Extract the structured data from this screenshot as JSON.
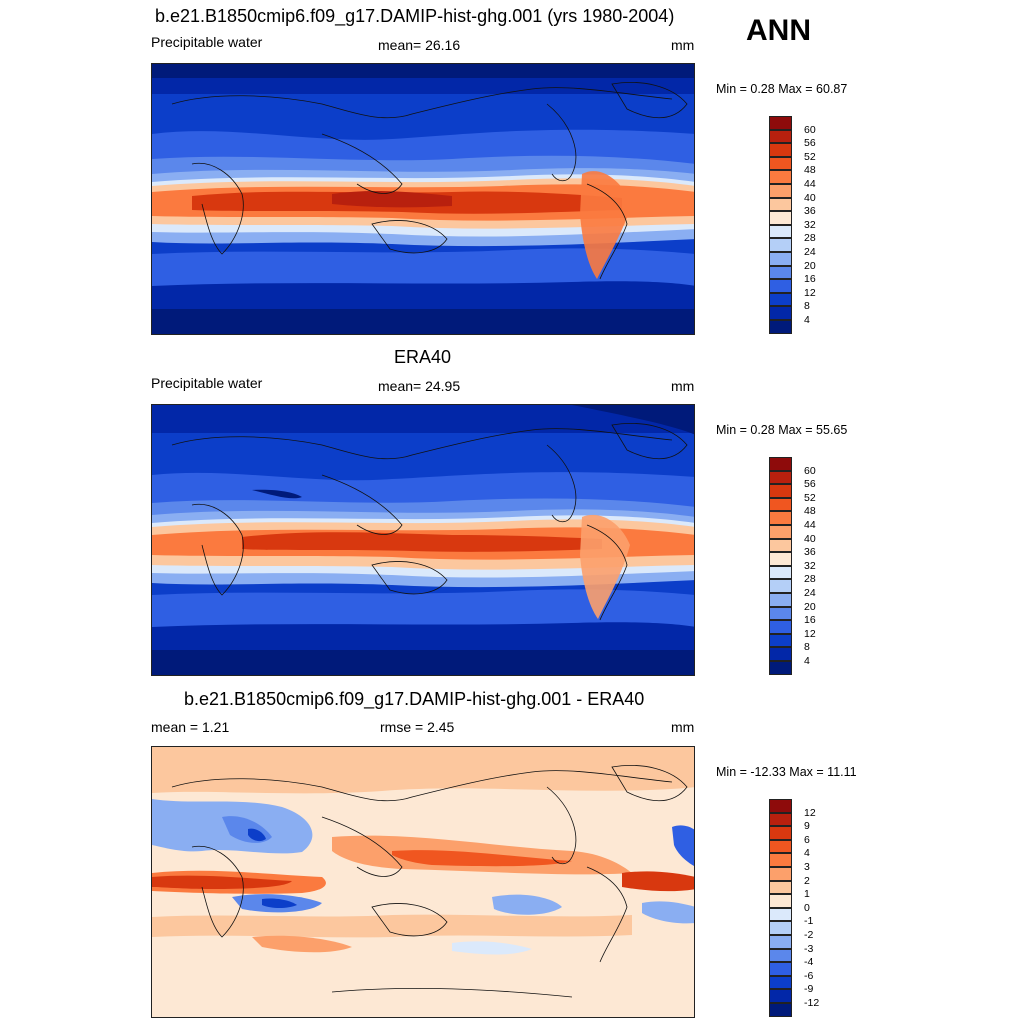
{
  "season": "ANN",
  "panels": [
    {
      "id": "model",
      "title": "b.e21.B1850cmip6.f09_g17.DAMIP-hist-ghg.001 (yrs 1980-2004)",
      "left_label": "Precipitable water",
      "center_label": "mean=  26.16",
      "units": "mm",
      "minmax": "Min =   0.28 Max =  60.87",
      "colorbar_labels": [
        "60",
        "56",
        "52",
        "48",
        "44",
        "40",
        "36",
        "32",
        "28",
        "24",
        "20",
        "16",
        "12",
        "8",
        "4"
      ],
      "colorbar_colors": [
        "#8e0b0b",
        "#b8200e",
        "#d8380f",
        "#f05620",
        "#fb7a3f",
        "#fca06b",
        "#fcc79e",
        "#fde8d4",
        "#dbe9fb",
        "#b4cff7",
        "#8aaef2",
        "#5b87eb",
        "#2f5fe3",
        "#0c3ec9",
        "#0227a8",
        "#001a7a"
      ]
    },
    {
      "id": "obs",
      "title": "ERA40",
      "left_label": "Precipitable water",
      "center_label": "mean=  24.95",
      "units": "mm",
      "minmax": "Min =   0.28 Max =  55.65",
      "colorbar_labels": [
        "60",
        "56",
        "52",
        "48",
        "44",
        "40",
        "36",
        "32",
        "28",
        "24",
        "20",
        "16",
        "12",
        "8",
        "4"
      ],
      "colorbar_colors": [
        "#8e0b0b",
        "#b8200e",
        "#d8380f",
        "#f05620",
        "#fb7a3f",
        "#fca06b",
        "#fcc79e",
        "#fde8d4",
        "#dbe9fb",
        "#b4cff7",
        "#8aaef2",
        "#5b87eb",
        "#2f5fe3",
        "#0c3ec9",
        "#0227a8",
        "#001a7a"
      ]
    },
    {
      "id": "diff",
      "title": "b.e21.B1850cmip6.f09_g17.DAMIP-hist-ghg.001 - ERA40",
      "left_label": "mean =    1.21",
      "center_label": "rmse =    2.45",
      "units": "mm",
      "minmax": "Min = -12.33 Max =  11.11",
      "colorbar_labels": [
        "12",
        "9",
        "6",
        "4",
        "3",
        "2",
        "1",
        "0",
        "-1",
        "-2",
        "-3",
        "-4",
        "-6",
        "-9",
        "-12"
      ],
      "colorbar_colors": [
        "#8e0b0b",
        "#b8200e",
        "#d8380f",
        "#f05620",
        "#fb7a3f",
        "#fca06b",
        "#fcc79e",
        "#fde8d4",
        "#dbe9fb",
        "#b4cff7",
        "#8aaef2",
        "#5b87eb",
        "#2f5fe3",
        "#0c3ec9",
        "#0227a8",
        "#001a7a"
      ]
    }
  ]
}
